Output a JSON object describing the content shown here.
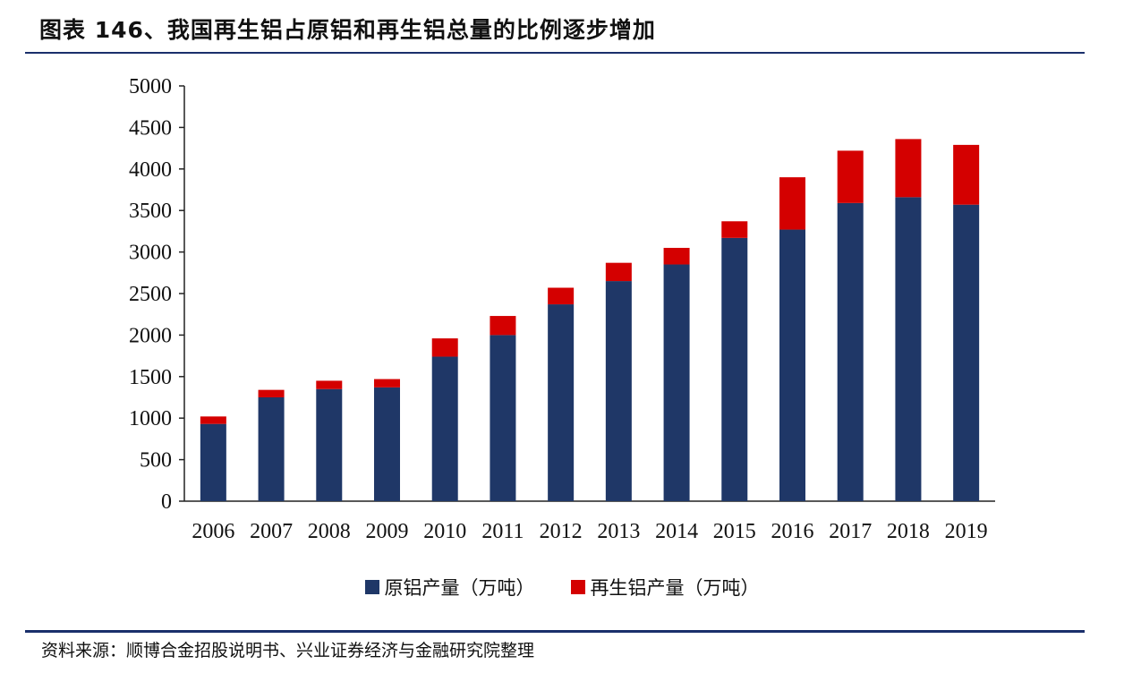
{
  "header": {
    "title": "图表 146、我国再生铝占原铝和再生铝总量的比例逐步增加"
  },
  "footer": {
    "source": "资料来源：顺博合金招股说明书、兴业证券经济与金融研究院整理"
  },
  "colors": {
    "primary": "#1f3767",
    "recycled": "#d40000",
    "rule": "#1a2f6b"
  },
  "chart_data": {
    "type": "bar",
    "stacked": true,
    "title": "",
    "xlabel": "",
    "ylabel": "",
    "ylim": [
      0,
      5000
    ],
    "yticks": [
      0,
      500,
      1000,
      1500,
      2000,
      2500,
      3000,
      3500,
      4000,
      4500,
      5000
    ],
    "categories": [
      "2006",
      "2007",
      "2008",
      "2009",
      "2010",
      "2011",
      "2012",
      "2013",
      "2014",
      "2015",
      "2016",
      "2017",
      "2018",
      "2019"
    ],
    "series": [
      {
        "name": "原铝产量（万吨）",
        "color": "#1f3767",
        "values": [
          930,
          1250,
          1350,
          1370,
          1740,
          2000,
          2370,
          2650,
          2850,
          3170,
          3270,
          3590,
          3660,
          3570
        ]
      },
      {
        "name": "再生铝产量（万吨）",
        "color": "#d40000",
        "values": [
          90,
          90,
          100,
          100,
          220,
          230,
          200,
          220,
          200,
          200,
          630,
          630,
          700,
          720
        ]
      }
    ],
    "legend_position": "bottom"
  }
}
